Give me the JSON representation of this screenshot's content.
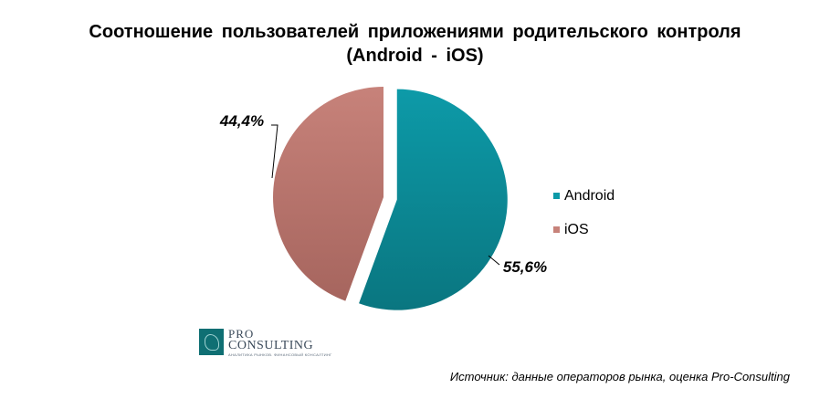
{
  "chart_data": {
    "type": "pie",
    "title_lines": [
      "Соотношение пользователей приложениями родительского контроля",
      "(Android  - iOS)"
    ],
    "slices": [
      {
        "name": "Android",
        "value": 55.6,
        "label": "55,6%",
        "color": "#0d9aa8",
        "color_dark": "#0a7680",
        "exploded": true
      },
      {
        "name": "iOS",
        "value": 44.4,
        "label": "44,4%",
        "color": "#c7827a",
        "color_dark": "#a6655e",
        "exploded": false
      }
    ],
    "legend_placement": "right"
  },
  "logo": {
    "line1": "PRO",
    "line2": "CONSULTING",
    "tagline": "АНАЛИТИКА РЫНКОВ. ФИНАНСОВЫЙ КОНСАЛТИНГ"
  },
  "source": "Источник: данные операторов рынка, оценка Pro-Consulting"
}
